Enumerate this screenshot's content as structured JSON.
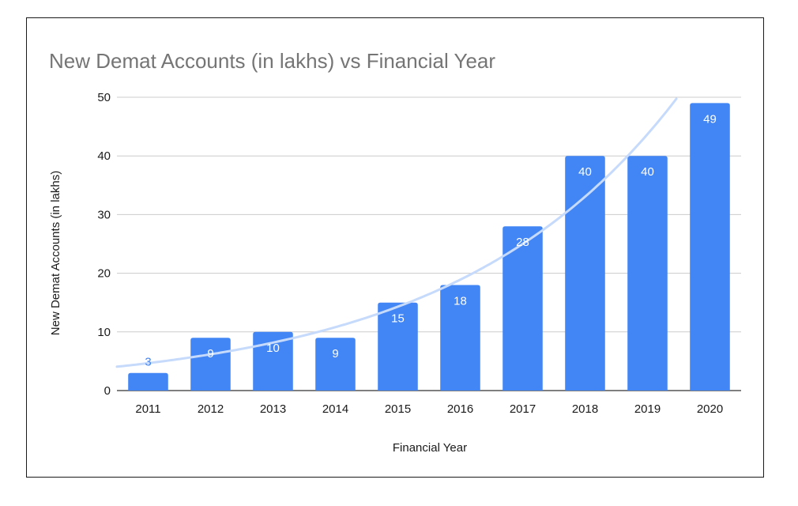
{
  "chart_data": {
    "type": "bar",
    "title": "New Demat Accounts (in lakhs) vs Financial Year",
    "xlabel": "Financial Year",
    "ylabel": "New Demat Accounts (in lakhs)",
    "categories": [
      "2011",
      "2012",
      "2013",
      "2014",
      "2015",
      "2016",
      "2017",
      "2018",
      "2019",
      "2020"
    ],
    "values": [
      3,
      9,
      10,
      9,
      15,
      18,
      28,
      40,
      40,
      49
    ],
    "data_labels": [
      "3",
      "9",
      "10",
      "9",
      "15",
      "18",
      "28",
      "40",
      "40",
      "49"
    ],
    "ylim": [
      0,
      50
    ],
    "yticks": [
      0,
      10,
      20,
      30,
      40,
      50
    ],
    "ytick_labels": [
      "0",
      "10",
      "20",
      "30",
      "40",
      "50"
    ],
    "grid": true,
    "legend": "none",
    "trendline": {
      "type": "exponential"
    },
    "colors": {
      "bar": "#4285f4",
      "trendline": "#c6dafc",
      "grid": "#cccccc",
      "axis": "#333333",
      "title": "#757575"
    }
  }
}
